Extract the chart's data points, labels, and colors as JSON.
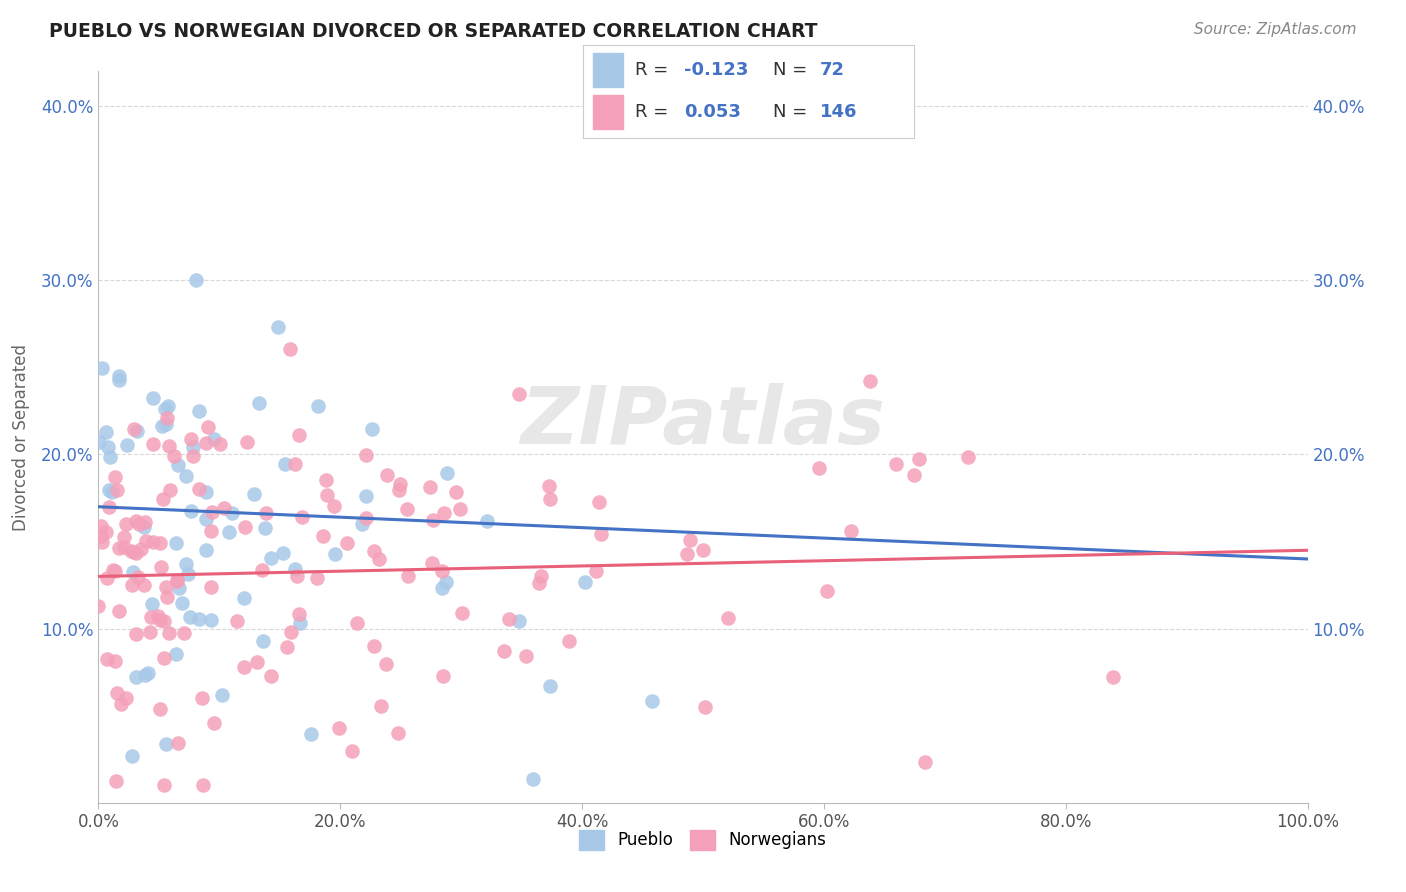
{
  "title": "PUEBLO VS NORWEGIAN DIVORCED OR SEPARATED CORRELATION CHART",
  "source": "Source: ZipAtlas.com",
  "ylabel": "Divorced or Separated",
  "xlim": [
    0.0,
    1.0
  ],
  "ylim": [
    0.0,
    0.42
  ],
  "pueblo_color": "#a8c8e8",
  "norwegian_color": "#f4a0b8",
  "pueblo_line_color": "#4472c4",
  "norwegian_line_color": "#e8607a",
  "tick_color": "#4472c4",
  "watermark_color": "#d8d8d8",
  "background_color": "#ffffff",
  "grid_color": "#d8d8d8",
  "title_color": "#222222",
  "source_color": "#888888",
  "legend_R1": "-0.123",
  "legend_N1": "72",
  "legend_R2": "0.053",
  "legend_N2": "146",
  "pueblo_line_start_y": 0.17,
  "pueblo_line_end_y": 0.14,
  "norwegian_line_start_y": 0.13,
  "norwegian_line_end_y": 0.145
}
